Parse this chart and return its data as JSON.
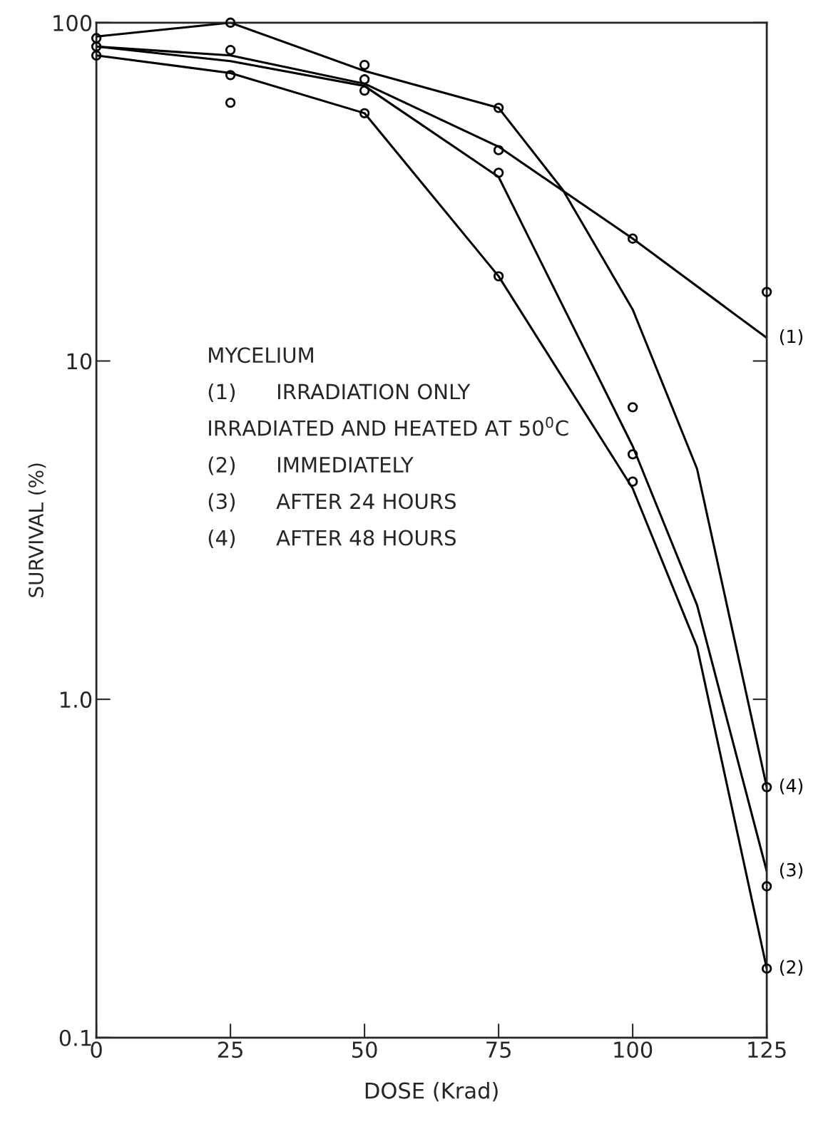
{
  "chart_data": {
    "type": "line",
    "xlabel": "DOSE (Krad)",
    "ylabel": "SURVIVAL (%)",
    "log": "y",
    "grid": false,
    "marker": "none",
    "line_style": "solid",
    "xlim": [
      0,
      125
    ],
    "xticks": [
      0,
      25,
      50,
      75,
      100,
      125
    ],
    "ylim": [
      0.1,
      100
    ],
    "yticks": [
      0.1,
      {
        "value": 1,
        "label": "1.0"
      },
      10,
      100
    ],
    "annotations": [
      "MYCELIUM",
      "(1)      IRRADIATION ONLY",
      "IRRADIATED AND HEATED AT 50$^{0}$C",
      "(2)      IMMEDIATELY",
      "(3)      AFTER 24 HOURS",
      "(4)      AFTER 48 HOURS"
    ],
    "series": [
      {
        "name": "(1)",
        "color": "#000000",
        "x": [
          0,
          25,
          50,
          75,
          100,
          125
        ],
        "values": [
          85,
          80,
          66,
          43,
          23,
          11.7
        ]
      },
      {
        "name": "(2)",
        "color": "#000000",
        "x": [
          0,
          25,
          50,
          75,
          100,
          112,
          125
        ],
        "values": [
          80,
          71,
          54,
          17.8,
          4.2,
          1.43,
          0.16
        ]
      },
      {
        "name": "(3)",
        "color": "#000000",
        "x": [
          0,
          25,
          50,
          75,
          100,
          112,
          125
        ],
        "values": [
          85,
          77,
          65,
          35,
          5.6,
          1.9,
          0.31
        ]
      },
      {
        "name": "(4)",
        "color": "#000000",
        "x": [
          0,
          25,
          50,
          75,
          87,
          100,
          112,
          125
        ],
        "values": [
          91,
          100,
          72,
          56,
          32,
          14.2,
          4.8,
          0.55
        ]
      },
      {
        "type": "scatter",
        "marker": "circle",
        "color": "#000000",
        "x": [
          0,
          0,
          0,
          25,
          25,
          25,
          25,
          50,
          50,
          50,
          50,
          75,
          75,
          75,
          75,
          100,
          100,
          100,
          100,
          125,
          125,
          125,
          125
        ],
        "values": [
          90,
          85,
          80,
          100,
          83,
          70,
          58,
          75,
          68,
          63,
          54,
          56,
          42,
          36,
          17.8,
          23,
          7.3,
          5.3,
          4.4,
          16,
          0.55,
          0.28,
          0.16
        ]
      }
    ]
  }
}
